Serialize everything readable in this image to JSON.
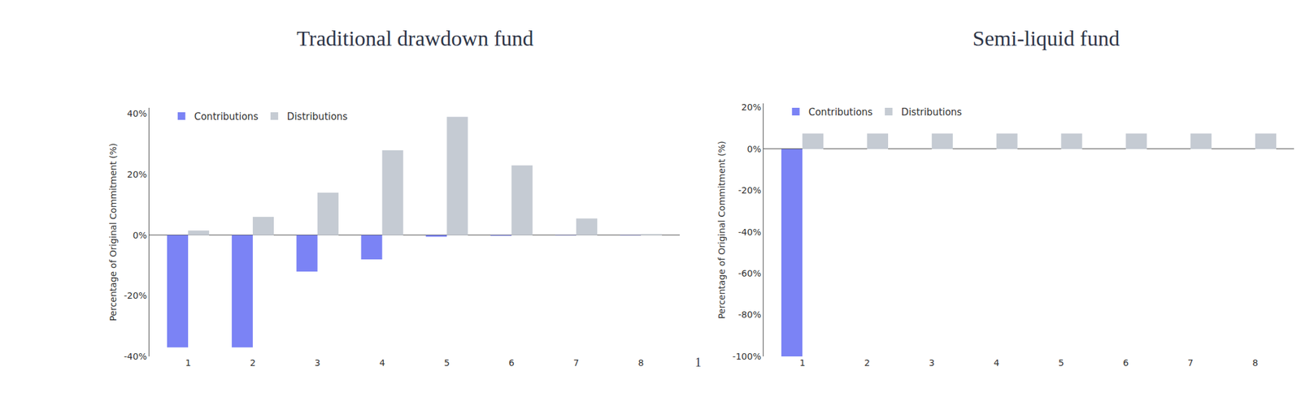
{
  "chart_data": [
    {
      "type": "bar",
      "title": "Traditional drawdown fund",
      "y_label": "Percentage of Original Commitment (%)",
      "categories": [
        "1",
        "2",
        "3",
        "4",
        "5",
        "6",
        "7",
        "8"
      ],
      "series": [
        {
          "name": "Contributions",
          "color": "#7b83f5",
          "values": [
            -37,
            -37,
            -12,
            -8,
            -0.5,
            -0.2,
            -0.1,
            -0.1
          ]
        },
        {
          "name": "Distributions",
          "color": "#c5cbd3",
          "values": [
            1.5,
            6,
            14,
            28,
            39,
            23,
            5.5,
            0.3
          ]
        }
      ],
      "ylim": [
        -40,
        42
      ],
      "yticks": [
        {
          "value": -40,
          "label": "-40%"
        },
        {
          "value": -20,
          "label": "-20%"
        },
        {
          "value": 0,
          "label": "0%"
        },
        {
          "value": 20,
          "label": "20%"
        },
        {
          "value": 40,
          "label": "40%"
        }
      ],
      "grid": false,
      "legend": "upper left",
      "annotations": [
        "1"
      ]
    },
    {
      "type": "bar",
      "title": "Semi-liquid fund",
      "y_label": "Percentage of Original Commitment (%)",
      "categories": [
        "1",
        "2",
        "3",
        "4",
        "5",
        "6",
        "7",
        "8"
      ],
      "series": [
        {
          "name": "Contributions",
          "color": "#7b83f5",
          "values": [
            -100,
            0,
            0,
            0,
            0,
            0,
            0,
            0
          ]
        },
        {
          "name": "Distributions",
          "color": "#c5cbd3",
          "values": [
            7.5,
            7.5,
            7.5,
            7.5,
            7.5,
            7.5,
            7.5,
            7.5
          ]
        }
      ],
      "ylim": [
        -100,
        22
      ],
      "yticks": [
        {
          "value": -100,
          "label": "-100%"
        },
        {
          "value": -80,
          "label": "-80%"
        },
        {
          "value": -60,
          "label": "-60%"
        },
        {
          "value": -40,
          "label": "-40%"
        },
        {
          "value": -20,
          "label": "-20%"
        },
        {
          "value": 0,
          "label": "0%"
        },
        {
          "value": 20,
          "label": "20%"
        }
      ],
      "grid": false,
      "legend": "upper left"
    }
  ]
}
